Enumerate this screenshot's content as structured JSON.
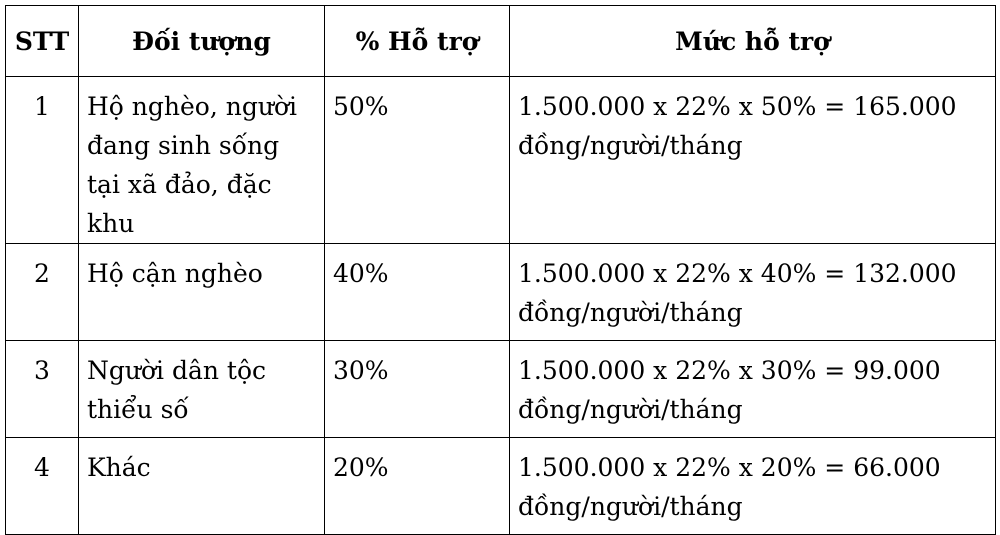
{
  "table": {
    "headers": [
      "STT",
      "Đối tượng",
      "% Hỗ trợ",
      "Mức hỗ trợ"
    ],
    "rows": [
      {
        "stt": "1",
        "doi_tuong": "Hộ nghèo, người đang sinh sống tại xã đảo, đặc khu",
        "pct": "50%",
        "muc": "1.500.000 x 22% x 50% = 165.000 đồng/người/tháng"
      },
      {
        "stt": "2",
        "doi_tuong": "Hộ cận nghèo",
        "pct": "40%",
        "muc": "1.500.000 x 22% x 40% = 132.000 đồng/người/tháng"
      },
      {
        "stt": "3",
        "doi_tuong": "Người dân tộc thiểu số",
        "pct": "30%",
        "muc": "1.500.000 x 22% x 30% = 99.000 đồng/người/tháng"
      },
      {
        "stt": "4",
        "doi_tuong": "Khác",
        "pct": "20%",
        "muc": "1.500.000 x 22% x 20% = 66.000 đồng/người/tháng"
      }
    ]
  }
}
